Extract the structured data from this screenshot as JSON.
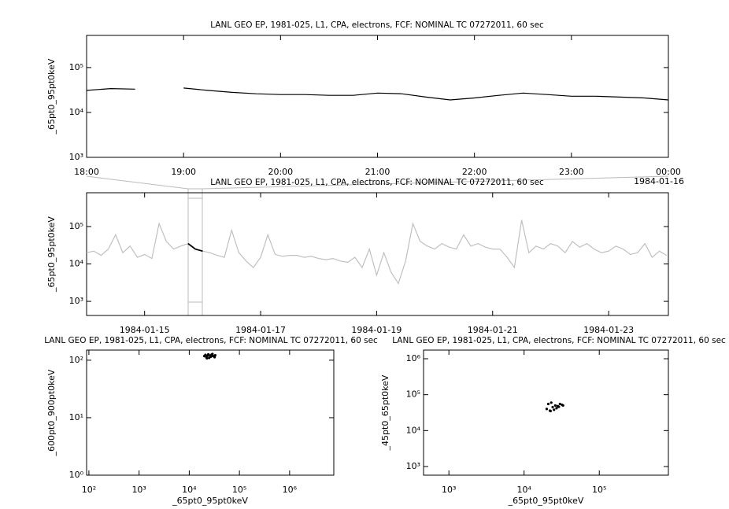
{
  "chart_data": [
    {
      "type": "line",
      "title": "LANL GEO EP, 1981-025, L1, CPA, electrons, FCF: NOMINAL TC 07272011, 60 sec",
      "ylabel": "_65pt0_95pt0keV",
      "annotation": "1984-01-16",
      "x": [
        18,
        18.25,
        18.5,
        18.75,
        19,
        19.25,
        19.5,
        19.75,
        20,
        20.25,
        20.5,
        20.75,
        21,
        21.25,
        21.5,
        21.75,
        22,
        22.25,
        22.5,
        22.75,
        23,
        23.25,
        23.5,
        23.75,
        24
      ],
      "series": [
        {
          "color": "#000000",
          "values": [
            31000,
            34000,
            33000,
            null,
            35000,
            31000,
            28000,
            26000,
            25000,
            25000,
            24000,
            24000,
            27000,
            26000,
            22000,
            19000,
            21000,
            24000,
            27000,
            25000,
            23000,
            23000,
            22000,
            21000,
            19000
          ]
        }
      ],
      "xlim": [
        18,
        24
      ],
      "xticks": [
        {
          "value": 18,
          "label": "18:00"
        },
        {
          "value": 19,
          "label": "19:00"
        },
        {
          "value": 20,
          "label": "20:00"
        },
        {
          "value": 21,
          "label": "21:00"
        },
        {
          "value": 22,
          "label": "22:00"
        },
        {
          "value": 23,
          "label": "23:00"
        },
        {
          "value": 24,
          "label": "00:00"
        }
      ],
      "ylim": [
        1000,
        520000
      ],
      "ylog": true,
      "yticks": [
        {
          "value": 1000,
          "label": "10³"
        },
        {
          "value": 10000,
          "label": "10⁴"
        },
        {
          "value": 100000,
          "label": "10⁵"
        }
      ]
    },
    {
      "type": "line",
      "title": "LANL GEO EP, 1981-025, L1, CPA, electrons, FCF: NOMINAL TC 07272011, 60 sec",
      "ylabel": "_65pt0_95pt0keV",
      "x": [
        14,
        14.125,
        14.25,
        14.375,
        14.5,
        14.625,
        14.75,
        14.875,
        15,
        15.125,
        15.25,
        15.375,
        15.5,
        15.625,
        15.75,
        15.875,
        16,
        16.125,
        16.25,
        16.375,
        16.5,
        16.625,
        16.75,
        16.875,
        17,
        17.125,
        17.25,
        17.375,
        17.5,
        17.625,
        17.75,
        17.875,
        18,
        18.125,
        18.25,
        18.375,
        18.5,
        18.625,
        18.75,
        18.875,
        19,
        19.125,
        19.25,
        19.375,
        19.5,
        19.625,
        19.75,
        19.875,
        20,
        20.125,
        20.25,
        20.375,
        20.5,
        20.625,
        20.75,
        20.875,
        21,
        21.125,
        21.25,
        21.375,
        21.5,
        21.625,
        21.75,
        21.875,
        22,
        22.125,
        22.25,
        22.375,
        22.5,
        22.625,
        22.75,
        22.875,
        23,
        23.125,
        23.25,
        23.375,
        23.5,
        23.625,
        23.75,
        23.875,
        24
      ],
      "series": [
        {
          "color": "#c0c0c0",
          "values": [
            20000,
            22000,
            17000,
            25000,
            60000,
            20000,
            30000,
            15000,
            18000,
            14000,
            120000,
            40000,
            25000,
            30000,
            35000,
            25000,
            22000,
            20000,
            17000,
            15000,
            80000,
            20000,
            12000,
            8000,
            15000,
            60000,
            18000,
            16000,
            17000,
            17000,
            15000,
            16000,
            14000,
            13000,
            14000,
            12000,
            11000,
            15000,
            8000,
            25000,
            5000,
            20000,
            6000,
            3000,
            12000,
            120000,
            40000,
            30000,
            25000,
            35000,
            28000,
            25000,
            60000,
            30000,
            35000,
            28000,
            25000,
            25000,
            15000,
            8000,
            150000,
            20000,
            30000,
            25000,
            35000,
            30000,
            20000,
            40000,
            28000,
            35000,
            25000,
            20000,
            22000,
            30000,
            25000,
            18000,
            20000,
            35000,
            15000,
            22000,
            17000
          ]
        },
        {
          "color": "#000000",
          "values": [
            null,
            null,
            null,
            null,
            null,
            null,
            null,
            null,
            null,
            null,
            null,
            null,
            null,
            null,
            35000,
            25000,
            22000,
            null,
            null,
            null,
            null,
            null,
            null,
            null,
            null,
            null,
            null,
            null,
            null,
            null,
            null,
            null,
            null,
            null,
            null,
            null,
            null,
            null,
            null,
            null,
            null,
            null,
            null,
            null,
            null,
            null,
            null,
            null,
            null,
            null,
            null,
            null,
            null,
            null,
            null,
            null,
            null,
            null,
            null,
            null,
            null,
            null,
            null,
            null,
            null,
            null,
            null,
            null,
            null,
            null,
            null,
            null,
            null,
            null,
            null,
            null,
            null,
            null,
            null,
            null,
            null
          ]
        }
      ],
      "xlim": [
        14,
        24.03
      ],
      "xticks": [
        {
          "value": 15,
          "label": "1984-01-15"
        },
        {
          "value": 17,
          "label": "1984-01-17"
        },
        {
          "value": 19,
          "label": "1984-01-19"
        },
        {
          "value": 21,
          "label": "1984-01-21"
        },
        {
          "value": 23,
          "label": "1984-01-23"
        }
      ],
      "ylim": [
        420,
        800000
      ],
      "ylog": true,
      "yticks": [
        {
          "value": 1000,
          "label": "10³"
        },
        {
          "value": 10000,
          "label": "10⁴"
        },
        {
          "value": 100000,
          "label": "10⁵"
        }
      ]
    },
    {
      "type": "scatter",
      "title": "LANL GEO EP, 1981-025, L1, CPA, electrons, FCF: NOMINAL TC 07272011, 60 sec",
      "xlabel": "_65pt0_95pt0keV",
      "ylabel": "_600pt0_900pt0keV",
      "color": "#000000",
      "x": [
        20000,
        21000,
        22000,
        23000,
        24000,
        25000,
        26000,
        27000,
        28000,
        30000,
        32000,
        33000,
        22500,
        29000
      ],
      "values": [
        118,
        124,
        112,
        120,
        126,
        110,
        121,
        115,
        125,
        118,
        113,
        122,
        108,
        128
      ],
      "xlim": [
        90,
        7600000
      ],
      "xlog": true,
      "xticks": [
        {
          "value": 100,
          "label": "10²"
        },
        {
          "value": 1000,
          "label": "10³"
        },
        {
          "value": 10000,
          "label": "10⁴"
        },
        {
          "value": 100000,
          "label": "10⁵"
        },
        {
          "value": 1000000,
          "label": "10⁶"
        }
      ],
      "ylim": [
        1,
        150
      ],
      "ylog": true,
      "yticks": [
        {
          "value": 1,
          "label": "10⁰"
        },
        {
          "value": 10,
          "label": "10¹"
        },
        {
          "value": 100,
          "label": "10²"
        }
      ]
    },
    {
      "type": "scatter",
      "title": "LANL GEO EP, 1981-025, L1, CPA, electrons, FCF: NOMINAL TC 07272011, 60 sec",
      "xlabel": "_65pt0_95pt0keV",
      "ylabel": "_45pt0_65pt0keV",
      "color": "#000000",
      "x": [
        20000,
        21000,
        22000,
        23000,
        24000,
        25000,
        26000,
        27000,
        28000,
        30000,
        32000,
        33000,
        22500,
        29000
      ],
      "values": [
        40000,
        55000,
        36000,
        60000,
        45000,
        38000,
        50000,
        42000,
        48000,
        55000,
        52000,
        50000,
        35000,
        46000
      ],
      "xlim": [
        460,
        830000
      ],
      "xlog": true,
      "xticks": [
        {
          "value": 1000,
          "label": "10³"
        },
        {
          "value": 10000,
          "label": "10⁴"
        },
        {
          "value": 100000,
          "label": "10⁵"
        }
      ],
      "ylim": [
        575,
        1740000
      ],
      "ylog": true,
      "yticks": [
        {
          "value": 1000,
          "label": "10³"
        },
        {
          "value": 10000,
          "label": "10⁴"
        },
        {
          "value": 100000,
          "label": "10⁵"
        },
        {
          "value": 1000000,
          "label": "10⁶"
        }
      ]
    }
  ]
}
